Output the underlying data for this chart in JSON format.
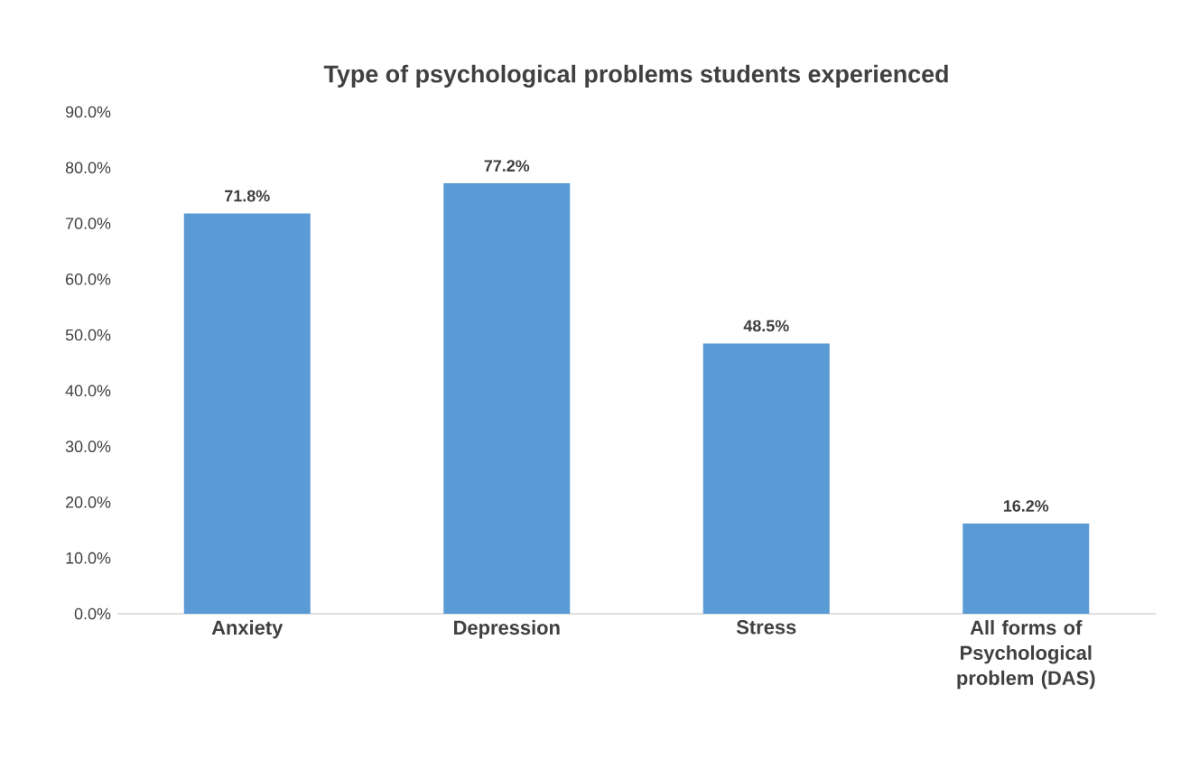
{
  "chart_data": {
    "type": "bar",
    "title": "Type of psychological problems students experienced",
    "categories": [
      "Anxiety",
      "Depression",
      "Stress",
      "All forms of Psychological problem (DAS)"
    ],
    "values": [
      71.8,
      77.2,
      48.5,
      16.2
    ],
    "value_labels": [
      "71.8%",
      "77.2%",
      "48.5%",
      "16.2%"
    ],
    "color": "#5b9bd5",
    "ylim": [
      0,
      90
    ],
    "yticks": [
      {
        "value": 0,
        "label": "0.0%"
      },
      {
        "value": 10,
        "label": "10.0%"
      },
      {
        "value": 20,
        "label": "20.0%"
      },
      {
        "value": 30,
        "label": "30.0%"
      },
      {
        "value": 40,
        "label": "40.0%"
      },
      {
        "value": 50,
        "label": "50.0%"
      },
      {
        "value": 60,
        "label": "60.0%"
      },
      {
        "value": 70,
        "label": "70.0%"
      },
      {
        "value": 80,
        "label": "80.0%"
      },
      {
        "value": 90,
        "label": "90.0%"
      }
    ],
    "grid": false
  }
}
